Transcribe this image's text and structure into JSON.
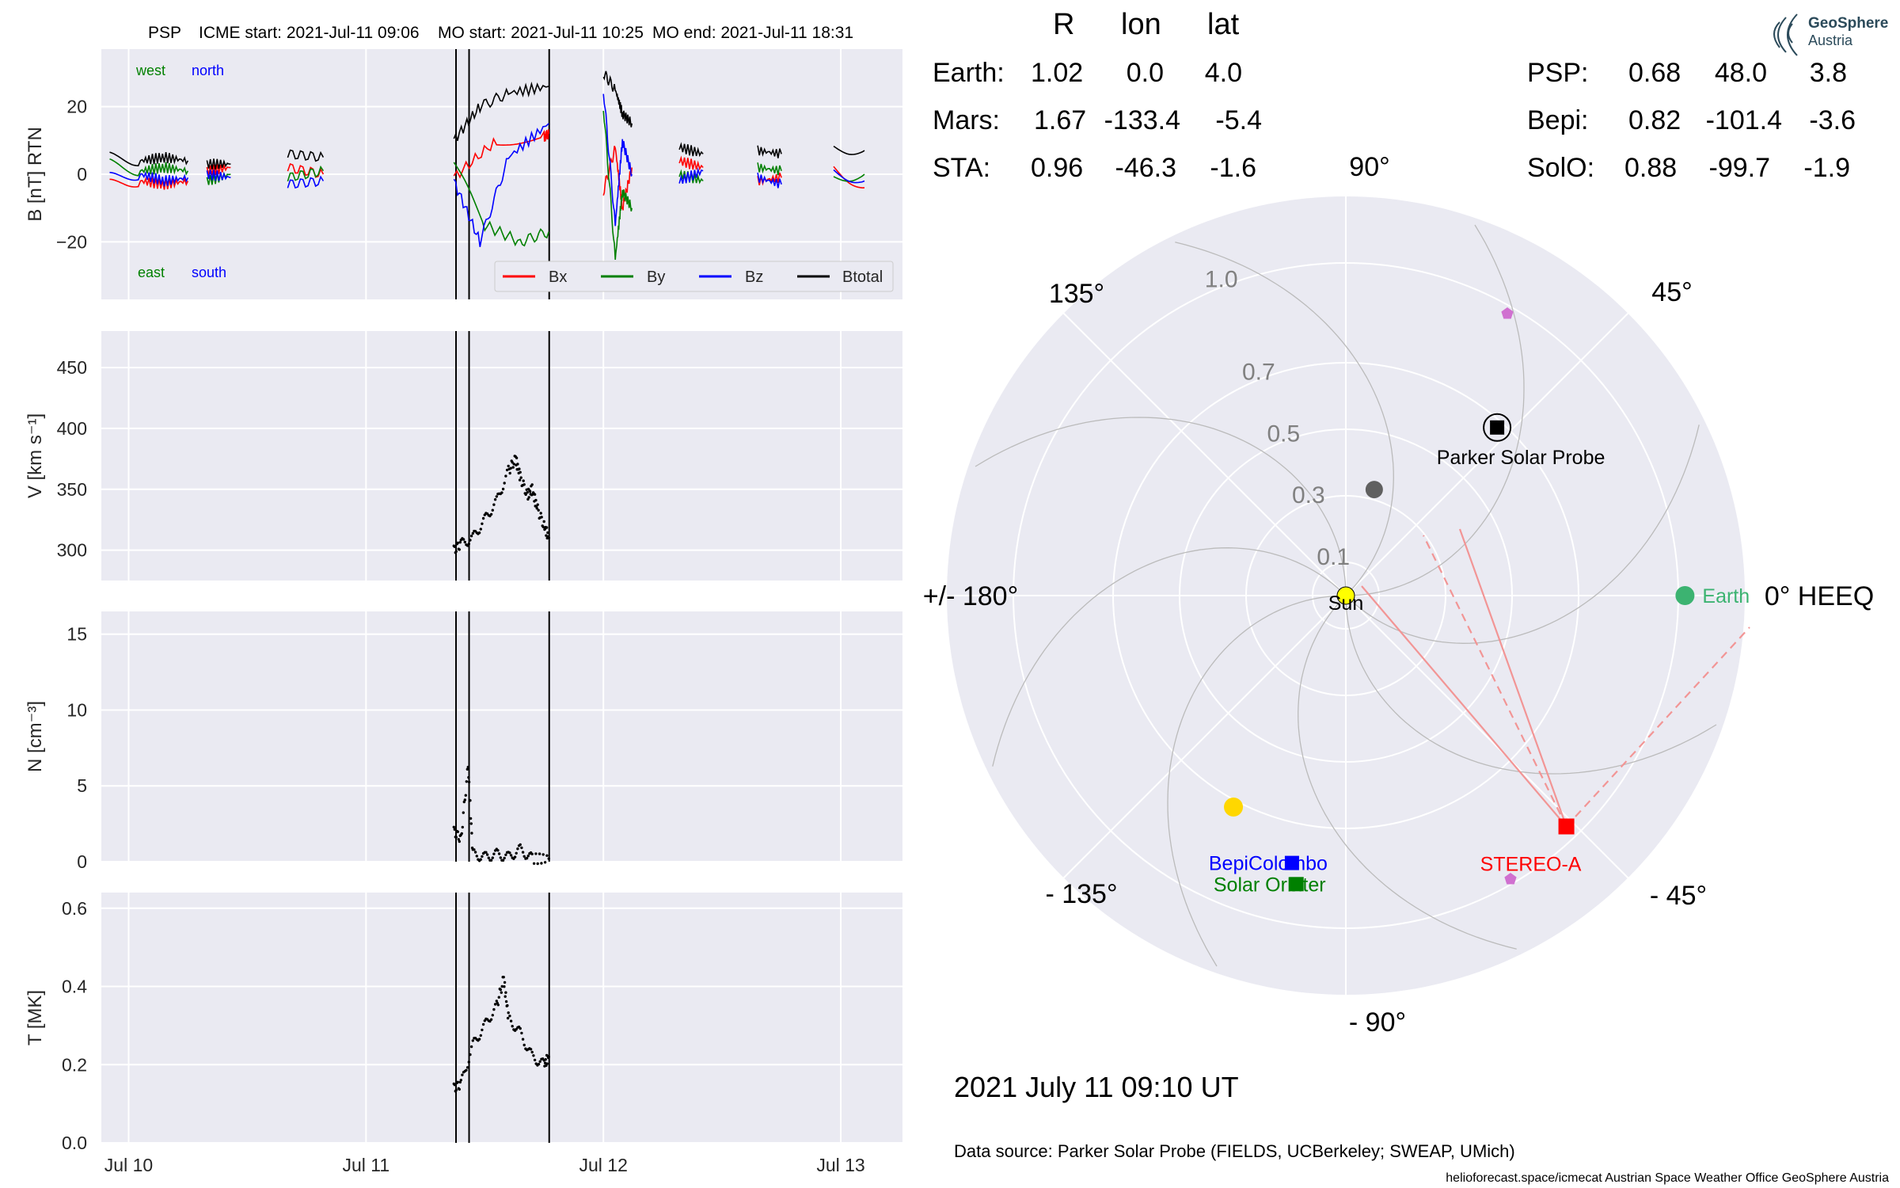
{
  "header": {
    "spacecraft": "PSP",
    "icme_start": "ICME start: 2021-Jul-11 09:06",
    "mo_start": "MO start: 2021-Jul-11 10:25",
    "mo_end": "MO end: 2021-Jul-11 18:31"
  },
  "logo": {
    "line1": "GeoSphere",
    "line2": "Austria"
  },
  "colors": {
    "Bx": "#ff0000",
    "By": "#008000",
    "Bz": "#0000ff",
    "Btotal": "#000000",
    "earth": "#3cb371",
    "mars": "#ff6347",
    "sta": "#ff0000",
    "psp": "#000000",
    "bepi": "#0000ff",
    "solo": "#008000",
    "panel_bg": "#eaeaf2"
  },
  "chart_data": [
    {
      "type": "line",
      "panel": "B",
      "ylabel": "B [nT] RTN",
      "ylim": [
        -37,
        37
      ],
      "yticks": [
        "20",
        "0",
        "−20"
      ],
      "ytick_values": [
        20,
        0,
        -20
      ],
      "xlim_days": [
        "Jul 10",
        "Jul 13"
      ],
      "annotations": {
        "top_left": "west",
        "top_mid": "north",
        "bottom_left": "east",
        "bottom_mid": "south"
      },
      "legend": [
        "Bx",
        "By",
        "Bz",
        "Btotal"
      ],
      "legend_position": "lower-right",
      "event_lines": [
        "2021-07-11 09:06",
        "2021-07-11 10:25",
        "2021-07-11 18:31"
      ],
      "series": [
        {
          "name": "Bx",
          "segments": [
            [
              [
                9.92,
                -3
              ],
              [
                10.05,
                -2
              ],
              [
                10.15,
                -3
              ],
              [
                10.25,
                -2
              ]
            ],
            [
              [
                10.33,
                1
              ],
              [
                10.43,
                2
              ]
            ],
            [
              [
                10.67,
                2
              ],
              [
                10.82,
                0
              ]
            ],
            [
              [
                11.37,
                -1
              ],
              [
                11.55,
                10
              ],
              [
                11.75,
                11
              ],
              [
                11.77,
                12
              ]
            ],
            [
              [
                12.0,
                -5
              ],
              [
                12.05,
                8
              ],
              [
                12.08,
                -10
              ],
              [
                12.12,
                2
              ]
            ],
            [
              [
                12.32,
                4
              ],
              [
                12.42,
                2
              ]
            ],
            [
              [
                12.65,
                -2
              ],
              [
                12.75,
                -1
              ]
            ],
            [
              [
                12.97,
                2
              ],
              [
                13.1,
                -4
              ]
            ]
          ]
        },
        {
          "name": "By",
          "segments": [
            [
              [
                9.92,
                3
              ],
              [
                10.05,
                1
              ],
              [
                10.15,
                2
              ],
              [
                10.25,
                1
              ]
            ],
            [
              [
                10.33,
                -2
              ],
              [
                10.43,
                0
              ]
            ],
            [
              [
                10.67,
                -1
              ],
              [
                10.82,
                1
              ]
            ],
            [
              [
                11.37,
                3
              ],
              [
                11.5,
                -15
              ],
              [
                11.65,
                -20
              ],
              [
                11.77,
                -17
              ]
            ],
            [
              [
                12.0,
                20
              ],
              [
                12.05,
                -25
              ],
              [
                12.08,
                -5
              ],
              [
                12.12,
                -10
              ]
            ],
            [
              [
                12.32,
                0
              ],
              [
                12.42,
                -2
              ]
            ],
            [
              [
                12.65,
                2
              ],
              [
                12.75,
                1
              ]
            ],
            [
              [
                12.97,
                -1
              ],
              [
                13.1,
                0
              ]
            ]
          ]
        },
        {
          "name": "Bz",
          "segments": [
            [
              [
                9.92,
                -1
              ],
              [
                10.05,
                0
              ],
              [
                10.15,
                -2
              ],
              [
                10.25,
                -1
              ]
            ],
            [
              [
                10.33,
                0
              ],
              [
                10.43,
                -1
              ]
            ],
            [
              [
                10.67,
                -3
              ],
              [
                10.82,
                -2
              ]
            ],
            [
              [
                11.37,
                -2
              ],
              [
                11.48,
                -20
              ],
              [
                11.6,
                5
              ],
              [
                11.77,
                15
              ]
            ],
            [
              [
                12.0,
                25
              ],
              [
                12.05,
                -15
              ],
              [
                12.08,
                10
              ],
              [
                12.12,
                0
              ]
            ],
            [
              [
                12.32,
                -2
              ],
              [
                12.42,
                1
              ]
            ],
            [
              [
                12.65,
                -1
              ],
              [
                12.75,
                -3
              ]
            ],
            [
              [
                12.97,
                1
              ],
              [
                13.1,
                -2
              ]
            ]
          ]
        },
        {
          "name": "Btotal",
          "segments": [
            [
              [
                9.92,
                5
              ],
              [
                10.05,
                4
              ],
              [
                10.15,
                5
              ],
              [
                10.25,
                4
              ]
            ],
            [
              [
                10.33,
                3
              ],
              [
                10.43,
                3
              ]
            ],
            [
              [
                10.67,
                6
              ],
              [
                10.82,
                5
              ]
            ],
            [
              [
                11.37,
                10
              ],
              [
                11.48,
                20
              ],
              [
                11.6,
                24
              ],
              [
                11.77,
                26
              ]
            ],
            [
              [
                12.0,
                30
              ],
              [
                12.05,
                25
              ],
              [
                12.08,
                18
              ],
              [
                12.12,
                15
              ]
            ],
            [
              [
                12.32,
                8
              ],
              [
                12.42,
                6
              ]
            ],
            [
              [
                12.65,
                7
              ],
              [
                12.75,
                6
              ]
            ],
            [
              [
                12.97,
                8
              ],
              [
                13.1,
                7
              ]
            ]
          ]
        }
      ]
    },
    {
      "type": "scatter",
      "panel": "V",
      "ylabel": "V [km s⁻¹]",
      "ylim": [
        275,
        480
      ],
      "yticks": [
        "450",
        "400",
        "350",
        "300"
      ],
      "ytick_values": [
        450,
        400,
        350,
        300
      ],
      "points": [
        [
          11.37,
          300
        ],
        [
          11.4,
          305
        ],
        [
          11.45,
          310
        ],
        [
          11.5,
          325
        ],
        [
          11.55,
          340
        ],
        [
          11.6,
          365
        ],
        [
          11.63,
          375
        ],
        [
          11.65,
          360
        ],
        [
          11.68,
          345
        ],
        [
          11.7,
          350
        ],
        [
          11.72,
          335
        ],
        [
          11.75,
          320
        ],
        [
          11.77,
          310
        ]
      ]
    },
    {
      "type": "scatter",
      "panel": "N",
      "ylabel": "N [cm⁻³]",
      "ylim": [
        0,
        16.5
      ],
      "yticks": [
        "15",
        "10",
        "5",
        "0"
      ],
      "ytick_values": [
        15,
        10,
        5,
        0
      ],
      "points": [
        [
          11.37,
          2
        ],
        [
          11.4,
          1.5
        ],
        [
          11.43,
          6.3
        ],
        [
          11.45,
          0.5
        ],
        [
          11.5,
          0.3
        ],
        [
          11.55,
          0.5
        ],
        [
          11.6,
          0.3
        ],
        [
          11.65,
          0.8
        ],
        [
          11.7,
          0.2
        ],
        [
          11.77,
          0.2
        ]
      ]
    },
    {
      "type": "scatter",
      "panel": "T",
      "ylabel": "T [MK]",
      "ylim": [
        0,
        0.64
      ],
      "yticks": [
        "0.6",
        "0.4",
        "0.2",
        "0.0"
      ],
      "ytick_values": [
        0.6,
        0.4,
        0.2,
        0.0
      ],
      "xticks": [
        "Jul 10",
        "Jul 11",
        "Jul 12",
        "Jul 13"
      ],
      "xtick_values": [
        10,
        11,
        12,
        13
      ],
      "points": [
        [
          11.37,
          0.14
        ],
        [
          11.4,
          0.15
        ],
        [
          11.45,
          0.25
        ],
        [
          11.5,
          0.3
        ],
        [
          11.55,
          0.35
        ],
        [
          11.58,
          0.42
        ],
        [
          11.6,
          0.32
        ],
        [
          11.65,
          0.28
        ],
        [
          11.7,
          0.22
        ],
        [
          11.75,
          0.2
        ],
        [
          11.77,
          0.22
        ]
      ]
    },
    {
      "type": "polar",
      "panel": "orbit",
      "r_ticks": [
        0.1,
        0.3,
        0.5,
        0.7,
        1.0
      ],
      "r_labels": [
        "0.1",
        "0.3",
        "0.5",
        "0.7",
        "1.0"
      ],
      "r_max": 1.2,
      "angle_labels": {
        "a0": "0° HEEQ",
        "a45": "45°",
        "a90": "90°",
        "a135": "135°",
        "a180": "+/- 180°",
        "am135": "- 135°",
        "am90": "- 90°",
        "am45": "- 45°"
      },
      "bodies": [
        {
          "name": "Sun",
          "r": 0,
          "lon": 0
        },
        {
          "name": "Earth",
          "r": 1.02,
          "lon": 0.0
        },
        {
          "name": "Parker Solar Probe",
          "r": 0.68,
          "lon": 48.0
        },
        {
          "name": "STEREO-A",
          "r": 0.96,
          "lon": -46.3
        },
        {
          "name": "BepiColombo",
          "r": 0.82,
          "lon": -101.4
        },
        {
          "name": "Solar Orbiter",
          "r": 0.88,
          "lon": -99.7
        },
        {
          "name": "Mercury",
          "r": 0.33,
          "lon": 75
        },
        {
          "name": "Venus",
          "r": 0.72,
          "lon": -118
        }
      ]
    }
  ],
  "positions_table": {
    "col_r": "R",
    "col_lon": "lon",
    "col_lat": "lat",
    "earth": {
      "label": "Earth:",
      "r": "1.02",
      "lon": "0.0",
      "lat": "4.0"
    },
    "mars": {
      "label": "Mars:",
      "r": "1.67",
      "lon": "-133.4",
      "lat": "-5.4"
    },
    "sta": {
      "label": "STA:",
      "r": "0.96",
      "lon": "-46.3",
      "lat": "-1.6"
    },
    "psp": {
      "label": "PSP:",
      "r": "0.68",
      "lon": "48.0",
      "lat": "3.8"
    },
    "bepi": {
      "label": "Bepi:",
      "r": "0.82",
      "lon": "-101.4",
      "lat": "-3.6"
    },
    "solo": {
      "label": "SolO:",
      "r": "0.88",
      "lon": "-99.7",
      "lat": "-1.9"
    }
  },
  "labels": {
    "sun": "Sun",
    "earth": "Earth",
    "psp": "Parker Solar Probe",
    "sta": "STEREO-A",
    "bepi": "BepiColombo",
    "solo": "Solar Orbiter"
  },
  "timestamp": "2021 July 11  09:10 UT",
  "data_source": "Data source: Parker Solar Probe (FIELDS, UCBerkeley; SWEAP, UMich)",
  "footer": "helioforecast.space/icmecat   Austrian Space Weather Office   GeoSphere Austria"
}
